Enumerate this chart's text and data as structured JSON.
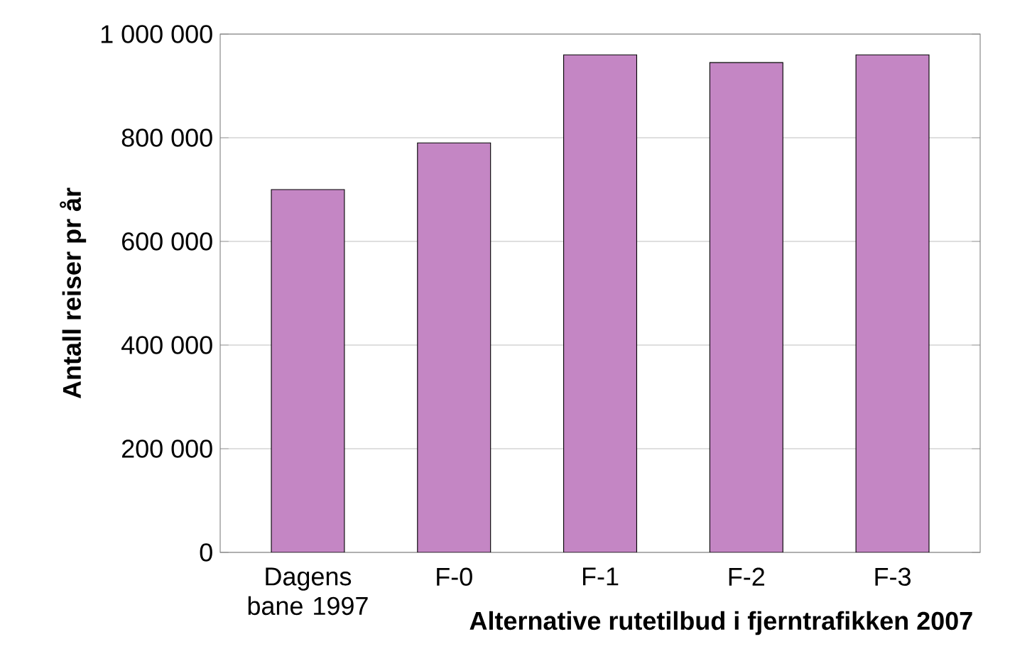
{
  "chart_data": {
    "type": "bar",
    "xlabel": "Alternative rutetilbud i fjerntrafikken 2007",
    "ylabel": "Antall reiser pr år",
    "categories": [
      "Dagens bane 1997",
      "F-0",
      "F-1",
      "F-2",
      "F-3"
    ],
    "values": [
      700000,
      790000,
      960000,
      945000,
      960000
    ],
    "color": "#c486c4",
    "ylim": [
      0,
      1000000
    ],
    "yticks": [
      {
        "value": 0,
        "label": "0"
      },
      {
        "value": 200000,
        "label": "200 000"
      },
      {
        "value": 400000,
        "label": "400 000"
      },
      {
        "value": 600000,
        "label": "600 000"
      },
      {
        "value": 800000,
        "label": "800 000"
      },
      {
        "value": 1000000,
        "label": "1 000 000"
      }
    ],
    "grid": "y"
  }
}
